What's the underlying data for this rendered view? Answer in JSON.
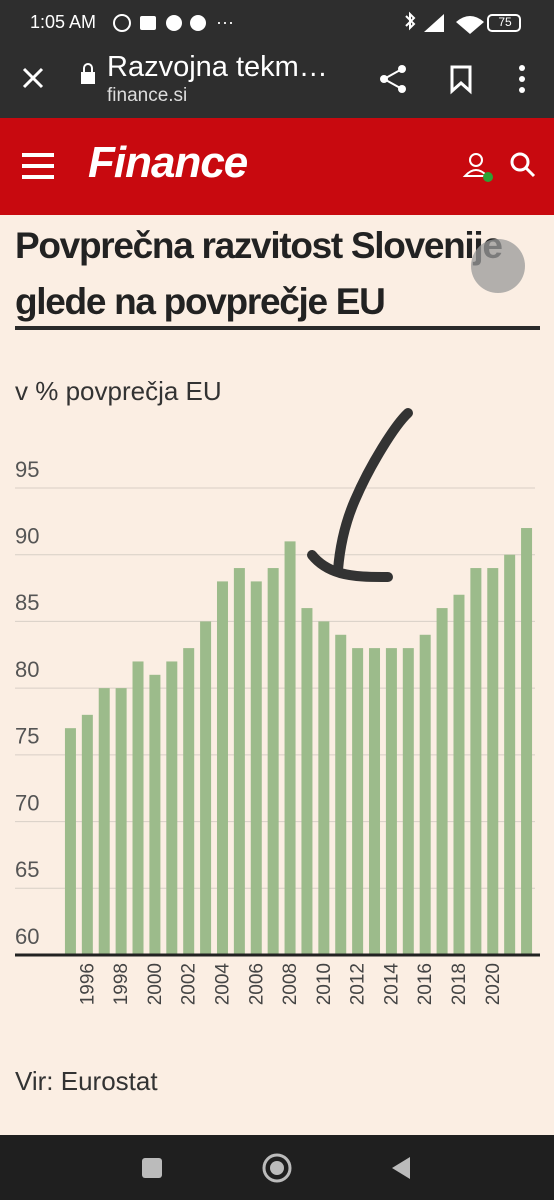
{
  "status_bar": {
    "time": "1:05 AM",
    "battery": "75"
  },
  "browser": {
    "page_title": "Razvojna tekm…",
    "domain": "finance.si"
  },
  "site": {
    "logo": "Finance"
  },
  "chart_data": {
    "type": "bar",
    "title": "Povprečna razvitost Slovenije glede na povprečje EU",
    "y_label": "v % povprečja EU",
    "categories": [
      null,
      "1996",
      null,
      "1998",
      null,
      "2000",
      null,
      "2002",
      null,
      "2004",
      null,
      "2006",
      null,
      "2008",
      null,
      "2010",
      null,
      "2012",
      null,
      "2014",
      null,
      "2016",
      null,
      "2018",
      null,
      "2020",
      null,
      null
    ],
    "values": [
      77,
      78,
      80,
      80,
      82,
      81,
      82,
      83,
      85,
      88,
      89,
      88,
      89,
      91,
      86,
      85,
      84,
      83,
      83,
      83,
      83,
      84,
      86,
      87,
      89,
      89,
      90,
      92
    ],
    "color": "#9cbb8b",
    "ylim": [
      60,
      95
    ],
    "yticks": [
      60,
      65,
      70,
      75,
      80,
      85,
      90,
      95
    ],
    "grid": true,
    "source": "Vir: Eurostat"
  }
}
